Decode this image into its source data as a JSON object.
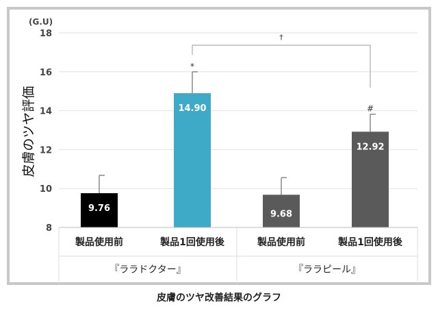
{
  "caption": "皮膚のツヤ改善結果のグラフ",
  "chart_data": {
    "type": "bar",
    "ylabel": "皮膚のツヤ評価",
    "yunit": "(G.U)",
    "ylim": [
      8,
      18
    ],
    "yticks": [
      8,
      10,
      12,
      14,
      16,
      18
    ],
    "grid": true,
    "bars": [
      {
        "category": "製品使用前",
        "group": "『ララドクター』",
        "value": 9.76,
        "error": 0.92,
        "label": "9.76",
        "marker": "",
        "color": "#000000"
      },
      {
        "category": "製品使用後",
        "group": "『ララドクター』",
        "value": 14.9,
        "error": 1.1,
        "label": "14.90",
        "marker": "*",
        "color": "#3fa9c8"
      },
      {
        "category": "製品使用前",
        "group": "『ララピール』",
        "value": 9.68,
        "error": 0.88,
        "label": "9.68",
        "marker": "",
        "color": "#5a5a5a"
      },
      {
        "category": "製品1回使用後",
        "group": "『ララピール』",
        "value": 12.92,
        "error": 0.9,
        "label": "12.92",
        "marker": "#",
        "color": "#5a5a5a"
      }
    ],
    "xlabels": [
      "製品使用前",
      "製品1回使用後",
      "製品使用前",
      "製品1回使用後"
    ],
    "groups": [
      "『ララドクター』",
      "『ララピール』"
    ],
    "bracket": {
      "from": 1,
      "to": 3,
      "marker": "†"
    }
  }
}
